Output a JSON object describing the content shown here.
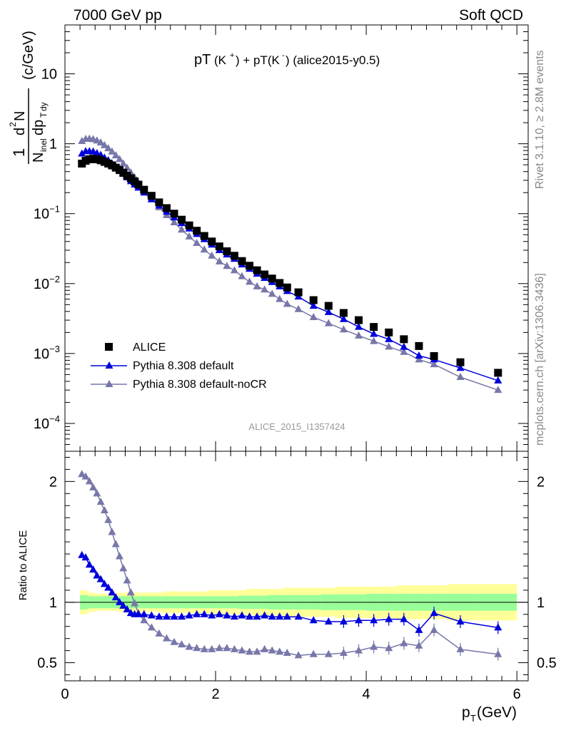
{
  "header": {
    "left": "7000 GeV pp",
    "right": "Soft QCD"
  },
  "side_labels": {
    "rivet": "Rivet 3.1.10, ≥ 2.8M events",
    "mcplots": "mcplots.cern.ch [arXiv:1306.3436]"
  },
  "plot_title": {
    "main": "pT",
    "kplus": "(K",
    "kplus_sup": "+",
    "plus": ") + pT(K",
    "kminus_sup": "-",
    "rest": ") (alice2015-y0.5)"
  },
  "analysis_label": "ALICE_2015_I1357424",
  "y_axis_label": {
    "num_one": "1",
    "num_d": "d",
    "num_sup": "2",
    "num_N": "N",
    "den_N": "N",
    "den_sub": "inel",
    "den_dp": "dp",
    "den_T": "T",
    "den_dy": "dy",
    "unit": "(c/GeV)"
  },
  "ratio_label": "Ratio to ALICE",
  "x_axis_label": {
    "p": "p",
    "sub": "T",
    "unit": " (GeV)"
  },
  "colors": {
    "alice": "#000000",
    "default": "#0000dd",
    "nocr": "#7777aa",
    "band_outer": "#ffff99",
    "band_inner": "#99ff99"
  },
  "chart_data": [
    {
      "type": "scatter",
      "title": "",
      "xlabel": "pT (GeV)",
      "ylabel": "(c/GeV)",
      "xlim": [
        0,
        6.15
      ],
      "ylim": [
        4e-05,
        50
      ],
      "yscale": "log",
      "x_ticks": [
        "0",
        "2",
        "4",
        "6"
      ],
      "y_ticks": [
        "10^-4",
        "10^-3",
        "10^-2",
        "10^-1",
        "1",
        "10"
      ],
      "legend_position": "lower-left",
      "x": [
        0.225,
        0.275,
        0.325,
        0.375,
        0.425,
        0.475,
        0.525,
        0.575,
        0.625,
        0.675,
        0.725,
        0.775,
        0.825,
        0.875,
        0.925,
        0.975,
        1.05,
        1.15,
        1.25,
        1.35,
        1.45,
        1.55,
        1.65,
        1.75,
        1.85,
        1.95,
        2.05,
        2.15,
        2.25,
        2.35,
        2.45,
        2.55,
        2.65,
        2.75,
        2.85,
        2.95,
        3.1,
        3.3,
        3.5,
        3.7,
        3.9,
        4.1,
        4.3,
        4.5,
        4.7,
        4.9,
        5.25,
        5.75
      ],
      "series": [
        {
          "name": "ALICE",
          "marker": "square",
          "values": [
            0.52,
            0.57,
            0.6,
            0.61,
            0.6,
            0.58,
            0.55,
            0.52,
            0.49,
            0.455,
            0.42,
            0.385,
            0.35,
            0.32,
            0.29,
            0.26,
            0.22,
            0.18,
            0.145,
            0.12,
            0.1,
            0.082,
            0.068,
            0.057,
            0.048,
            0.04,
            0.034,
            0.029,
            0.025,
            0.021,
            0.018,
            0.0155,
            0.0135,
            0.0118,
            0.0102,
            0.0088,
            0.0075,
            0.0058,
            0.0048,
            0.0038,
            0.003,
            0.0024,
            0.002,
            0.0016,
            0.00128,
            0.00092,
            0.00075,
            0.00053
          ]
        },
        {
          "name": "Pythia 8.308 default",
          "marker": "triangle",
          "values": [
            0.72,
            0.78,
            0.78,
            0.77,
            0.73,
            0.69,
            0.63,
            0.58,
            0.52,
            0.47,
            0.42,
            0.37,
            0.33,
            0.29,
            0.26,
            0.235,
            0.2,
            0.16,
            0.13,
            0.106,
            0.088,
            0.073,
            0.061,
            0.051,
            0.043,
            0.036,
            0.03,
            0.026,
            0.0225,
            0.0187,
            0.0162,
            0.0138,
            0.012,
            0.0105,
            0.0091,
            0.0078,
            0.0065,
            0.0048,
            0.0039,
            0.0031,
            0.0024,
            0.0019,
            0.0016,
            0.00124,
            0.00093,
            0.00082,
            0.00062,
            0.00041
          ]
        },
        {
          "name": "Pythia 8.308 default-noCR",
          "marker": "triangle",
          "values": [
            1.09,
            1.17,
            1.18,
            1.16,
            1.11,
            1.04,
            0.95,
            0.86,
            0.77,
            0.68,
            0.6,
            0.52,
            0.45,
            0.385,
            0.33,
            0.28,
            0.22,
            0.165,
            0.123,
            0.095,
            0.075,
            0.059,
            0.047,
            0.038,
            0.0305,
            0.025,
            0.0207,
            0.0178,
            0.0154,
            0.0127,
            0.0106,
            0.0091,
            0.0082,
            0.0071,
            0.006,
            0.0051,
            0.0043,
            0.0033,
            0.0027,
            0.0022,
            0.0018,
            0.0015,
            0.00125,
            0.00105,
            0.00082,
            0.0007,
            0.00046,
            0.0003
          ]
        }
      ]
    },
    {
      "type": "scatter",
      "title": "",
      "xlabel": "pT (GeV)",
      "ylabel": "Ratio to ALICE",
      "xlim": [
        0,
        6.15
      ],
      "ylim": [
        0.35,
        2.25
      ],
      "x_ticks": [
        "0",
        "2",
        "4",
        "6"
      ],
      "y_ticks": [
        "0.5",
        "1",
        "2"
      ],
      "reference_line": 1,
      "x": [
        0.225,
        0.275,
        0.325,
        0.375,
        0.425,
        0.475,
        0.525,
        0.575,
        0.625,
        0.675,
        0.725,
        0.775,
        0.825,
        0.875,
        0.925,
        0.975,
        1.05,
        1.15,
        1.25,
        1.35,
        1.45,
        1.55,
        1.65,
        1.75,
        1.85,
        1.95,
        2.05,
        2.15,
        2.25,
        2.35,
        2.45,
        2.55,
        2.65,
        2.75,
        2.85,
        2.95,
        3.1,
        3.3,
        3.5,
        3.7,
        3.9,
        4.1,
        4.3,
        4.5,
        4.7,
        4.9,
        5.25,
        5.75
      ],
      "series": [
        {
          "name": "Pythia 8.308 default",
          "values": [
            1.39,
            1.37,
            1.31,
            1.27,
            1.22,
            1.19,
            1.15,
            1.12,
            1.08,
            1.04,
            1.0,
            0.97,
            0.94,
            0.91,
            0.9,
            0.9,
            0.9,
            0.89,
            0.88,
            0.88,
            0.88,
            0.88,
            0.89,
            0.9,
            0.9,
            0.89,
            0.9,
            0.89,
            0.88,
            0.89,
            0.88,
            0.88,
            0.89,
            0.88,
            0.88,
            0.88,
            0.88,
            0.85,
            0.84,
            0.84,
            0.85,
            0.85,
            0.86,
            0.86,
            0.77,
            0.91,
            0.84,
            0.79
          ]
        },
        {
          "name": "Pythia 8.308 default-noCR",
          "values": [
            2.06,
            2.04,
            2.0,
            1.95,
            1.9,
            1.83,
            1.76,
            1.68,
            1.58,
            1.48,
            1.38,
            1.28,
            1.18,
            1.08,
            0.99,
            0.91,
            0.85,
            0.79,
            0.74,
            0.7,
            0.67,
            0.65,
            0.63,
            0.62,
            0.61,
            0.61,
            0.62,
            0.62,
            0.61,
            0.6,
            0.59,
            0.59,
            0.61,
            0.6,
            0.59,
            0.58,
            0.56,
            0.57,
            0.57,
            0.58,
            0.6,
            0.63,
            0.62,
            0.66,
            0.64,
            0.77,
            0.61,
            0.57
          ]
        }
      ],
      "band_inner_halfwidth": [
        0.06,
        0.06,
        0.05,
        0.05,
        0.05,
        0.05,
        0.05,
        0.05,
        0.05,
        0.05,
        0.05,
        0.05,
        0.05,
        0.05,
        0.05,
        0.05,
        0.05,
        0.05,
        0.05,
        0.05,
        0.05,
        0.05,
        0.05,
        0.05,
        0.05,
        0.05,
        0.05,
        0.05,
        0.05,
        0.055,
        0.055,
        0.055,
        0.055,
        0.06,
        0.06,
        0.06,
        0.06,
        0.06,
        0.065,
        0.065,
        0.065,
        0.07,
        0.07,
        0.07,
        0.07,
        0.07,
        0.07,
        0.07
      ],
      "band_outer_halfwidth": [
        0.1,
        0.1,
        0.08,
        0.08,
        0.07,
        0.07,
        0.07,
        0.07,
        0.07,
        0.07,
        0.08,
        0.08,
        0.08,
        0.08,
        0.08,
        0.08,
        0.08,
        0.08,
        0.08,
        0.09,
        0.09,
        0.09,
        0.09,
        0.09,
        0.09,
        0.1,
        0.1,
        0.1,
        0.1,
        0.1,
        0.11,
        0.11,
        0.11,
        0.11,
        0.11,
        0.12,
        0.12,
        0.12,
        0.12,
        0.13,
        0.13,
        0.13,
        0.13,
        0.14,
        0.14,
        0.14,
        0.15,
        0.15
      ]
    }
  ]
}
